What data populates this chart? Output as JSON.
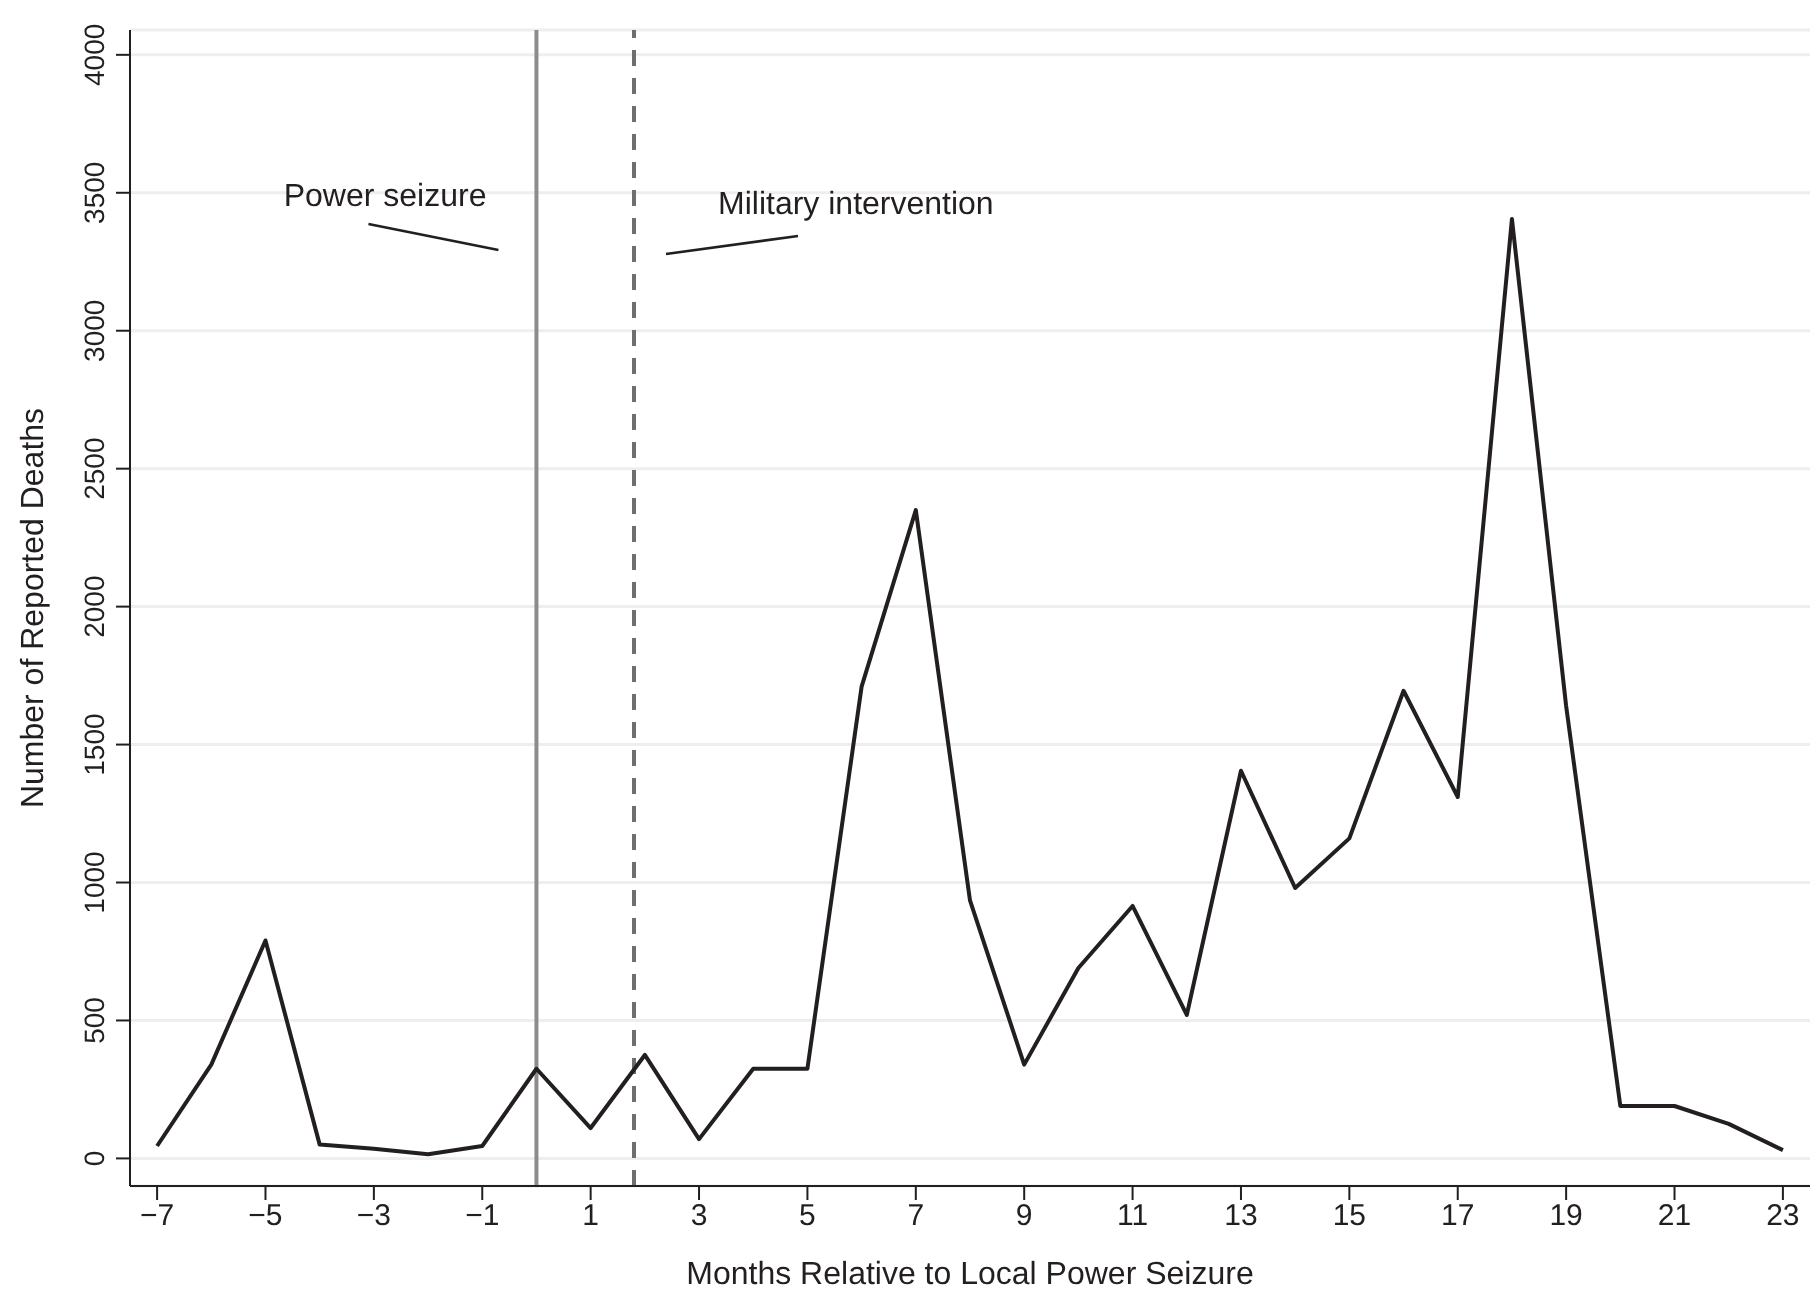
{
  "chart_data": {
    "type": "line",
    "xlabel": "Months Relative to Local Power Seizure",
    "ylabel": "Number of Reported Deaths",
    "x": [
      -7,
      -6,
      -5,
      -4,
      -3,
      -2,
      -1,
      0,
      1,
      2,
      3,
      4,
      5,
      6,
      7,
      8,
      9,
      10,
      11,
      12,
      13,
      14,
      15,
      16,
      17,
      18,
      19,
      20,
      21,
      22,
      23
    ],
    "series": [
      {
        "color": "#231f20",
        "values": [
          45,
          340,
          790,
          50,
          35,
          15,
          45,
          325,
          110,
          375,
          70,
          325,
          325,
          1710,
          2350,
          935,
          340,
          690,
          915,
          520,
          1405,
          980,
          1160,
          1695,
          1310,
          3405,
          1640,
          190,
          190,
          125,
          30
        ]
      }
    ],
    "xlim": [
      -7.5,
      23.5
    ],
    "xticks": [
      -7,
      -5,
      -3,
      -1,
      1,
      3,
      5,
      7,
      9,
      11,
      13,
      15,
      17,
      19,
      21,
      23
    ],
    "ylim": [
      -100,
      4090
    ],
    "yticks": [
      0,
      500,
      1000,
      1500,
      2000,
      2500,
      3000,
      3500,
      4000
    ],
    "grid": "y",
    "marker": "none",
    "line_style": "solid",
    "legend": false,
    "ref_lines": [
      {
        "axis": "x",
        "value": 0,
        "label": "Power seizure",
        "color": "#8c8c8c",
        "line_style": "solid"
      },
      {
        "axis": "x",
        "value": 1.8,
        "label": "Military intervention",
        "color": "#6e6e6e",
        "line_style": "dashed"
      }
    ]
  }
}
